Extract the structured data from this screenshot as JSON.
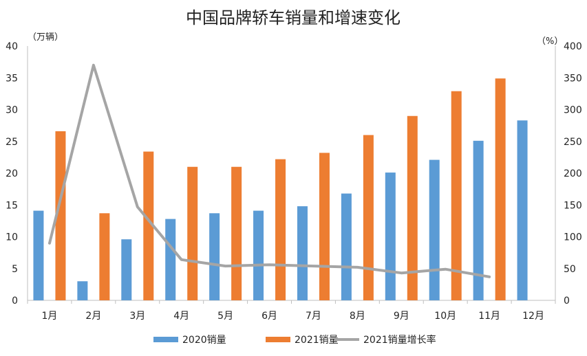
{
  "chart_data": {
    "type": "bar",
    "title": "中国品牌轿车销量和增速变化",
    "ylabel_left": "（万辆）",
    "ylabel_right": "（%）",
    "categories": [
      "1月",
      "2月",
      "3月",
      "4月",
      "5月",
      "6月",
      "7月",
      "8月",
      "9月",
      "10月",
      "11月",
      "12月"
    ],
    "ylim_left": [
      0,
      40
    ],
    "yticks_left": [
      0,
      5,
      10,
      15,
      20,
      25,
      30,
      35,
      40
    ],
    "ylim_right": [
      0,
      400
    ],
    "yticks_right": [
      0,
      50,
      100,
      150,
      200,
      250,
      300,
      350,
      400
    ],
    "grid": false,
    "legend_position": "bottom",
    "series": [
      {
        "name": "2020销量",
        "kind": "bar",
        "axis": "left",
        "color": "#5B9BD5",
        "values": [
          14.1,
          3.0,
          9.6,
          12.8,
          13.7,
          14.1,
          14.8,
          16.8,
          20.1,
          22.1,
          25.1,
          28.3
        ]
      },
      {
        "name": "2021销量",
        "kind": "bar",
        "axis": "left",
        "color": "#ED7D31",
        "values": [
          26.6,
          13.7,
          23.4,
          21.0,
          21.0,
          22.2,
          23.2,
          26.0,
          29.0,
          32.9,
          34.9,
          null
        ]
      },
      {
        "name": "2021销量增长率",
        "kind": "line",
        "axis": "right",
        "color": "#A5A5A5",
        "values": [
          90,
          370,
          147,
          64,
          54,
          56,
          54,
          52,
          43,
          49,
          37,
          null
        ]
      }
    ]
  }
}
